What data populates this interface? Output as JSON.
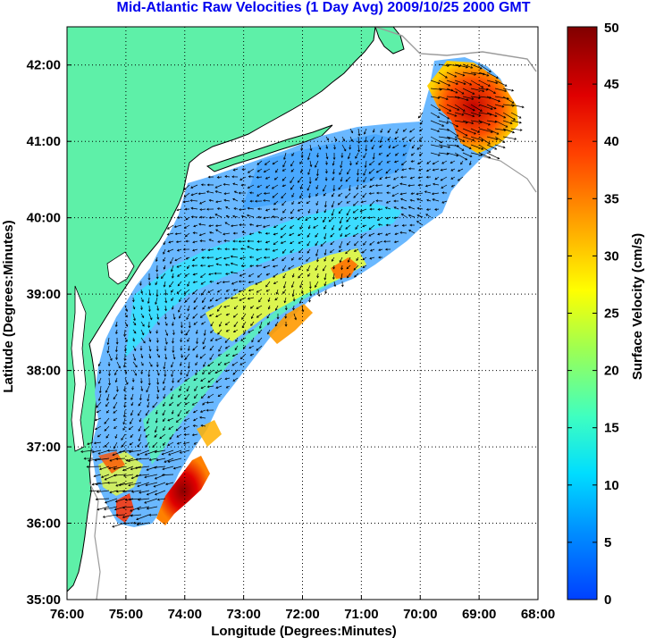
{
  "title": "Mid-Atlantic Raw Velocities (1 Day Avg) 2009/10/25 2000 GMT",
  "map": {
    "xlabel": "Longitude (Degrees:Minutes)",
    "ylabel": "Latitude (Degrees:Minutes)",
    "x_ticks": [
      "76:00",
      "75:00",
      "74:00",
      "73:00",
      "72:00",
      "71:00",
      "70:00",
      "69:00",
      "68:00"
    ],
    "y_ticks": [
      "42:00",
      "41:00",
      "40:00",
      "39:00",
      "38:00",
      "37:00",
      "36:00",
      "35:00"
    ],
    "lon_range": [
      -76,
      -68
    ],
    "lat_range": [
      35,
      42.5
    ],
    "grid": "dotted",
    "colors": {
      "land": "#5ef0a8",
      "water": "#ffffff",
      "frame": "#000000",
      "coast_line": "#000000",
      "bathymetry": "#9a9a9a",
      "arrow": "#000000"
    }
  },
  "colorbar": {
    "label": "Surface Velocity (cm/s)",
    "ticks": [
      "50",
      "45",
      "40",
      "35",
      "30",
      "25",
      "20",
      "15",
      "10",
      "5",
      "0"
    ],
    "range": [
      0,
      50
    ],
    "colormap": "jet"
  }
}
